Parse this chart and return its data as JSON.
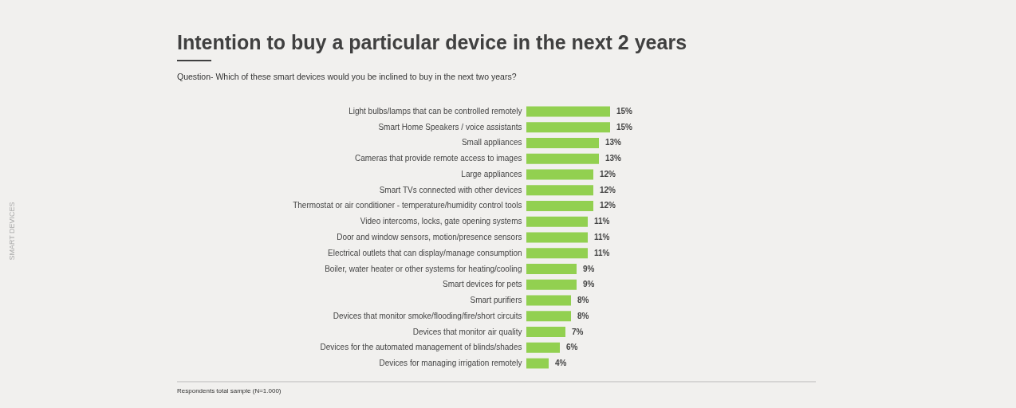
{
  "chart_data": {
    "type": "bar",
    "orientation": "horizontal",
    "title": "Intention to buy a particular device in the next 2 years",
    "subtitle": "Question- Which of these smart devices would you be inclined to buy in the next two years?",
    "categories": [
      "Light bulbs/lamps that can be controlled remotely",
      "Smart Home Speakers / voice assistants",
      "Small appliances",
      "Cameras that provide remote access to images",
      "Large appliances",
      "Smart TVs connected with other devices",
      "Thermostat or air conditioner - temperature/humidity control tools",
      "Video intercoms, locks, gate opening systems",
      "Door and window  sensors, motion/presence sensors",
      "Electrical outlets that can display/manage consumption",
      "Boiler, water heater or other systems for heating/cooling",
      "Smart devices for pets",
      "Smart purifiers",
      "Devices that monitor smoke/flooding/fire/short circuits",
      "Devices that monitor air quality",
      "Devices for the automated management of blinds/shades",
      "Devices for managing irrigation remotely"
    ],
    "values": [
      15,
      15,
      13,
      13,
      12,
      12,
      12,
      11,
      11,
      11,
      9,
      9,
      8,
      8,
      7,
      6,
      4
    ],
    "value_labels": [
      "15%",
      "15%",
      "13%",
      "13%",
      "12%",
      "12%",
      "12%",
      "11%",
      "11%",
      "11%",
      "9%",
      "9%",
      "8%",
      "8%",
      "7%",
      "6%",
      "4%"
    ],
    "color": "#92d050",
    "annotations": [
      "Respondents total sample (N=1.000)",
      "SMART DEVICES"
    ],
    "tick_labels": "y",
    "grid": false
  }
}
